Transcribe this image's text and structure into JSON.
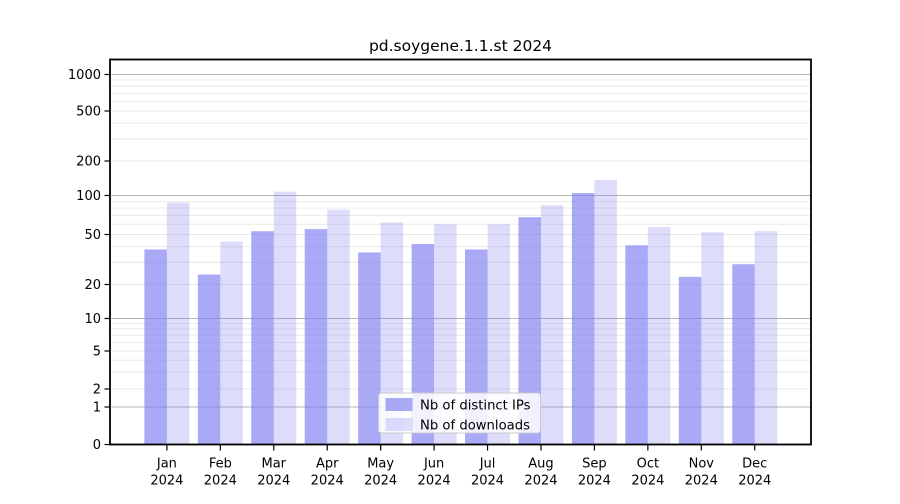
{
  "chart_data": {
    "type": "bar",
    "title": "pd.soygene.1.1.st 2024",
    "categories": [
      "Jan",
      "Feb",
      "Mar",
      "Apr",
      "May",
      "Jun",
      "Jul",
      "Aug",
      "Sep",
      "Oct",
      "Nov",
      "Dec"
    ],
    "x_year_label": "2024",
    "series": [
      {
        "name": "Nb of distinct IPs",
        "color": "rgba(128,128,240,0.68)",
        "values": [
          38,
          24,
          53,
          55,
          36,
          42,
          38,
          68,
          105,
          41,
          23,
          29
        ]
      },
      {
        "name": "Nb of downloads",
        "color": "rgba(128,128,240,0.27)",
        "values": [
          88,
          44,
          108,
          78,
          62,
          60,
          60,
          84,
          137,
          57,
          52,
          53
        ]
      }
    ],
    "yticks": [
      0,
      1,
      2,
      5,
      10,
      20,
      50,
      100,
      200,
      500,
      1000
    ],
    "major_grid_values": [
      1,
      10,
      100,
      1000
    ],
    "yscale": "asinh-log (log spacing above 1, linear segment from 0 to 1)",
    "ylim": [
      0,
      1300
    ],
    "grid": true,
    "legend_position": "lower center",
    "bar_layout": "paired bars per month; distinct-IPs bar left of tick, downloads bar right of tick"
  },
  "colors": {
    "bar_dark": "rgba(128,128,240,0.68)",
    "bar_light": "rgba(128,128,240,0.27)",
    "major_gridline": "#b4b4b4",
    "minor_gridline": "#e8e8e8",
    "axis": "#000000",
    "legend_border": "#cccccc",
    "legend_bg": "rgba(255,255,255,0.85)",
    "text": "#000000"
  }
}
